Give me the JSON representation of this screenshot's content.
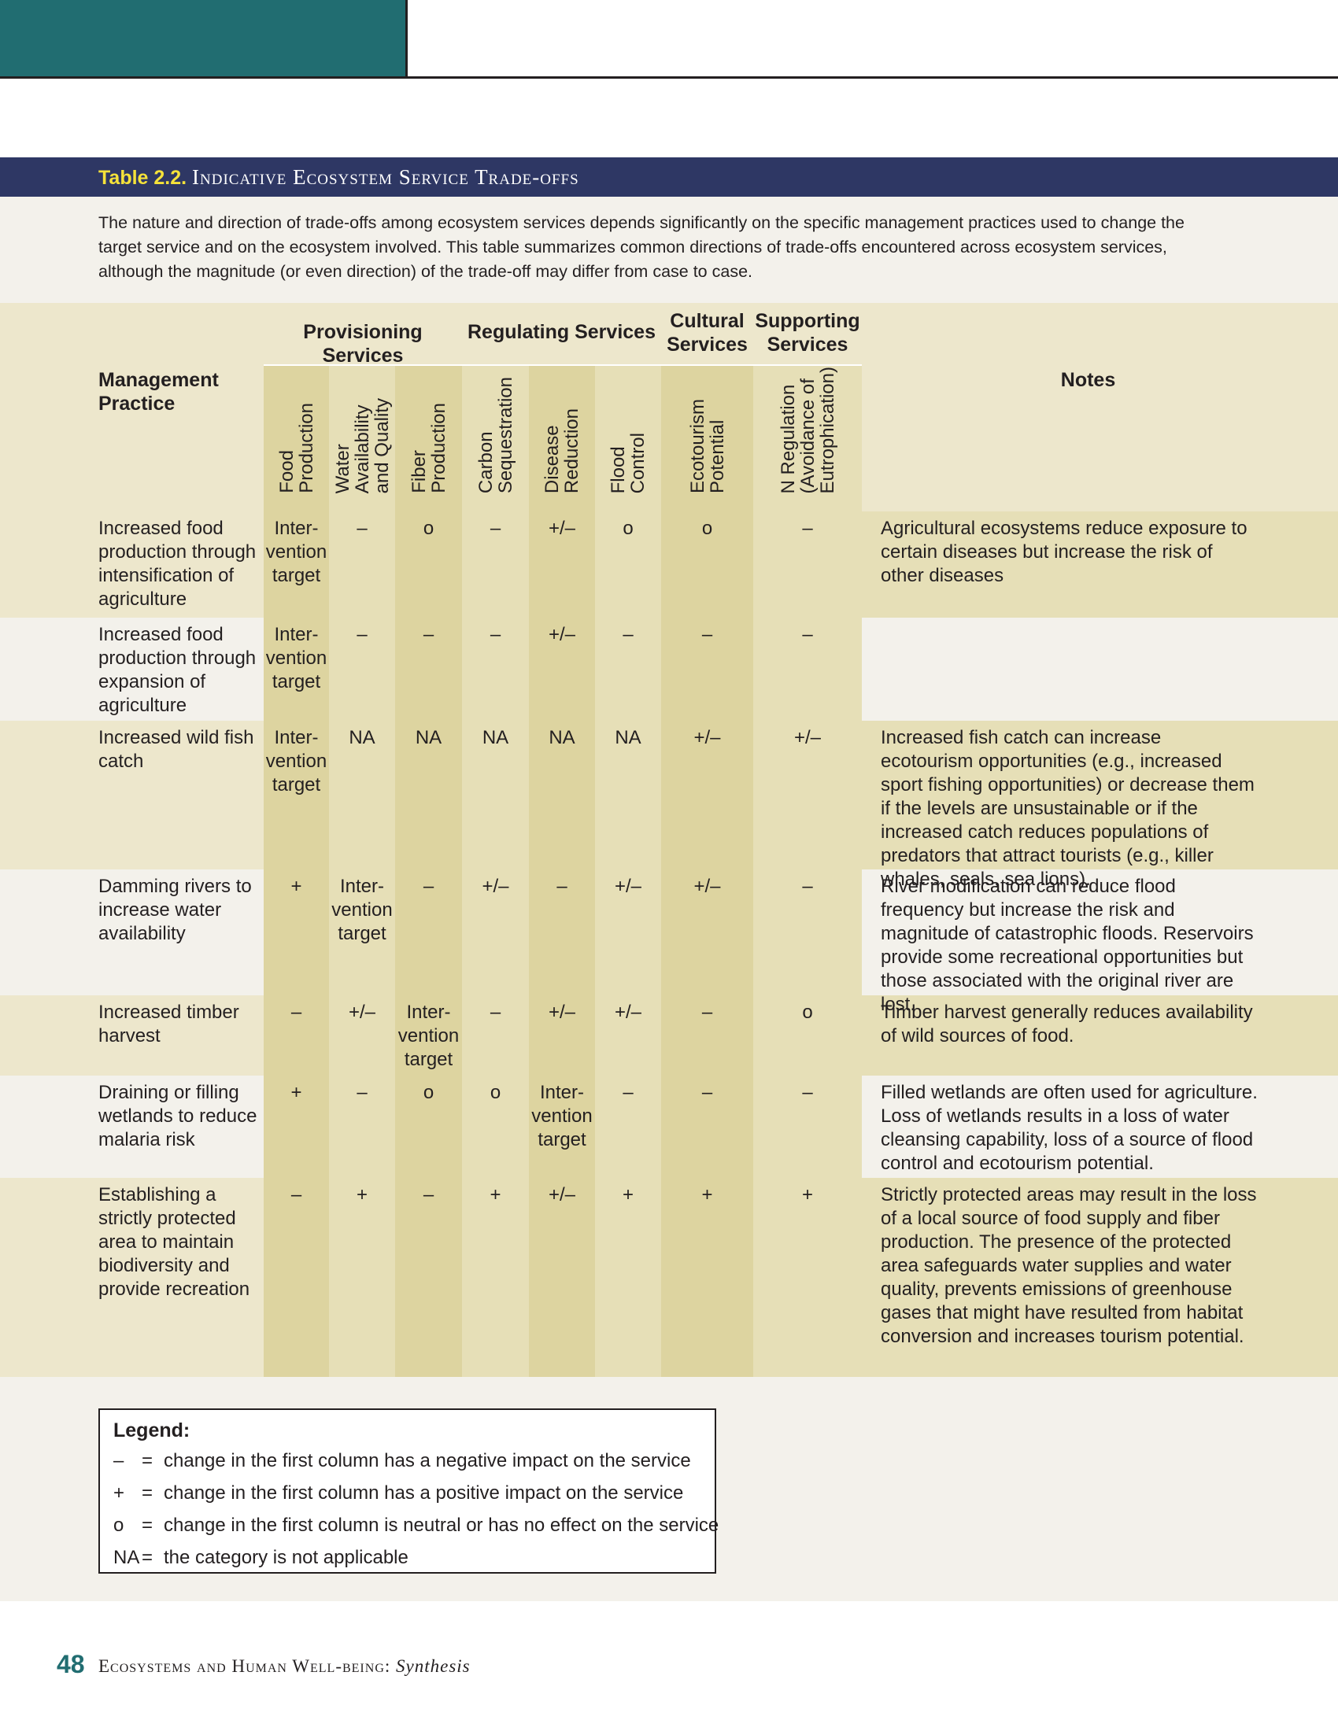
{
  "table": {
    "number": "Table 2.2.",
    "name": "Indicative Ecosystem Service Trade-offs",
    "intro": "The nature and direction of trade-offs among ecosystem services depends significantly on the specific management practices used to change the target service and on the ecosystem involved. This table summarizes common directions of trade-offs encountered across ecosystem services, although the magnitude (or even direction) of the trade-off may differ from case to case.",
    "header": {
      "management_practice": "Management Practice",
      "notes": "Notes",
      "groups": [
        "Provisioning Services",
        "Regulating Services",
        "Cultural Services",
        "Supporting Services"
      ],
      "columns": [
        "Food Production",
        "Water Availability and Quality",
        "Fiber Production",
        "Carbon Sequestration",
        "Disease Reduction",
        "Flood Control",
        "Ecotourism Potential",
        "N Regulation (Avoidance of Eutrophication)"
      ]
    },
    "rows": [
      {
        "practice": "Increased food production through intensification of agriculture",
        "values": [
          "Inter-vention target",
          "–",
          "o",
          "–",
          "+/–",
          "o",
          "o",
          "–"
        ],
        "notes": "Agricultural ecosystems reduce exposure to certain diseases but increase the risk of other diseases"
      },
      {
        "practice": "Increased food production through expansion of agriculture",
        "values": [
          "Inter-vention target",
          "–",
          "–",
          "–",
          "+/–",
          "–",
          "–",
          "–"
        ],
        "notes": ""
      },
      {
        "practice": "Increased wild fish catch",
        "values": [
          "Inter-vention target",
          "NA",
          "NA",
          "NA",
          "NA",
          "NA",
          "+/–",
          "+/–"
        ],
        "notes": "Increased fish catch can increase ecotourism opportunities (e.g., increased sport fishing opportunities) or decrease them if the levels are unsustainable or if the increased catch reduces populations of predators that attract tourists (e.g., killer whales, seals, sea lions)."
      },
      {
        "practice": "Damming rivers to increase water availability",
        "values": [
          "+",
          "Inter-vention target",
          "–",
          "+/–",
          "–",
          "+/–",
          "+/–",
          "–"
        ],
        "notes": "River modification can reduce flood frequency but increase the risk and magnitude of catastrophic floods. Reservoirs provide some recreational opportunities but those associated with the original river are lost."
      },
      {
        "practice": "Increased timber harvest",
        "values": [
          "–",
          "+/–",
          "Inter-vention target",
          "–",
          "+/–",
          "+/–",
          "–",
          "o"
        ],
        "notes": "Timber harvest generally reduces availability of wild sources of food."
      },
      {
        "practice": "Draining or filling wetlands to reduce malaria risk",
        "values": [
          "+",
          "–",
          "o",
          "o",
          "Inter-vention target",
          "–",
          "–",
          "–"
        ],
        "notes": "Filled wetlands are often used for agriculture. Loss of wetlands results in a loss of water cleansing capability, loss of a source of flood control and ecotourism potential."
      },
      {
        "practice": "Establishing a strictly protected area to maintain biodiversity and provide recreation",
        "values": [
          "–",
          "+",
          "–",
          "+",
          "+/–",
          "+",
          "+",
          "+"
        ],
        "notes": "Strictly protected areas may result in the loss of a local source of food supply and fiber production. The presence of the protected area safeguards water supplies and water quality, prevents emissions of greenhouse gases that might have resulted from habitat conversion and increases tourism potential."
      }
    ],
    "legend": {
      "title": "Legend:",
      "items": [
        {
          "symbol": "–",
          "text": "change in the first column has a negative impact on the service"
        },
        {
          "symbol": "+",
          "text": "change in the first column has a positive impact on the service"
        },
        {
          "symbol": "o",
          "text": "change in the first column is neutral or has no effect on the service"
        },
        {
          "symbol": "NA",
          "text": "the category is not applicable"
        }
      ]
    }
  },
  "footer": {
    "page_number": "48",
    "running_title": "Ecosystems and Human Well-being:",
    "running_subtitle": "Synthesis"
  },
  "colors": {
    "teal": "#216d71",
    "navy": "#2e3764",
    "title_accent": "#f5e23a",
    "shade_dark": "#ddd4a0",
    "shade_mid": "#e6dfb7",
    "shade_light": "#ede7cc",
    "shade_pale": "#f3f1eb"
  }
}
